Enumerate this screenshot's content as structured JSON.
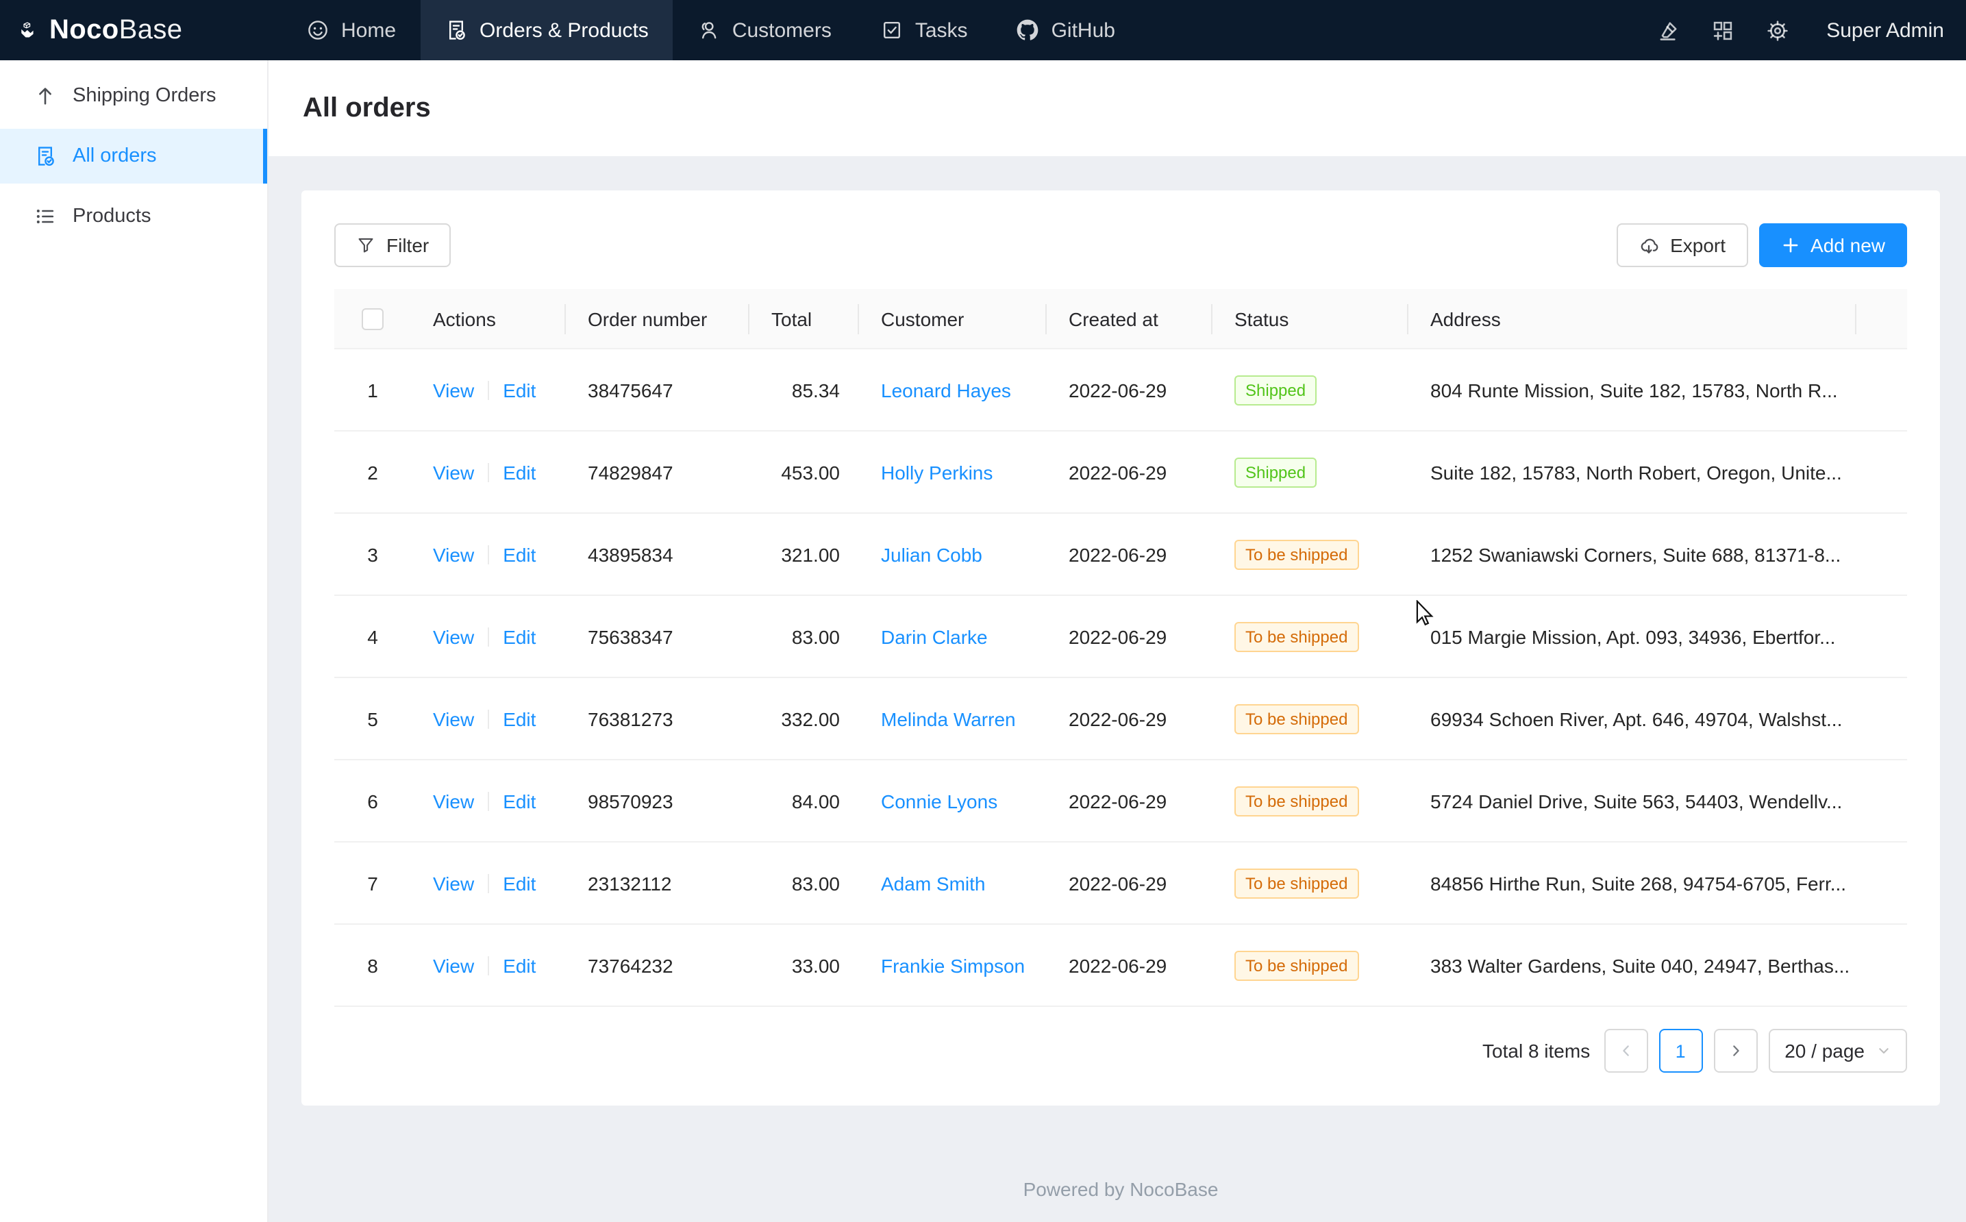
{
  "colors": {
    "primary": "#1890ff",
    "nav-bg": "#0b1a2c",
    "nav-active-bg": "#1d2d42",
    "tag-success-text": "#52c41a",
    "tag-success-bg": "#f6ffed",
    "tag-success-border": "#b7eb8f",
    "tag-warning-text": "#d46b08",
    "tag-warning-bg": "#fff7e6",
    "tag-warning-border": "#ffd591"
  },
  "nav": {
    "logo": {
      "brand_bold": "Noco",
      "brand_light": "Base",
      "icon": "nocobase-cube-icon"
    },
    "items": [
      {
        "id": "home",
        "icon": "smile-icon",
        "label": "Home",
        "active": false
      },
      {
        "id": "orders-products",
        "icon": "file-done-icon",
        "label": "Orders & Products",
        "active": true
      },
      {
        "id": "customers",
        "icon": "user-icon",
        "label": "Customers",
        "active": false
      },
      {
        "id": "tasks",
        "icon": "check-square-icon",
        "label": "Tasks",
        "active": false
      },
      {
        "id": "github",
        "icon": "github-icon",
        "label": "GitHub",
        "active": false
      }
    ],
    "right_icons": [
      {
        "id": "ui-editor",
        "icon": "highlighter-icon"
      },
      {
        "id": "plugins",
        "icon": "plugin-icon"
      },
      {
        "id": "settings",
        "icon": "gear-icon"
      }
    ],
    "user": "Super Admin"
  },
  "sidebar": {
    "items": [
      {
        "id": "shipping-orders",
        "icon": "arrow-up-icon",
        "label": "Shipping Orders",
        "active": false
      },
      {
        "id": "all-orders",
        "icon": "file-done-icon",
        "label": "All orders",
        "active": true
      },
      {
        "id": "products",
        "icon": "unordered-list-icon",
        "label": "Products",
        "active": false
      }
    ]
  },
  "page": {
    "title": "All orders"
  },
  "toolbar": {
    "filter_label": "Filter",
    "export_label": "Export",
    "add_new_label": "Add new"
  },
  "table": {
    "columns": [
      "",
      "Actions",
      "Order number",
      "Total",
      "Customer",
      "Created at",
      "Status",
      "Address"
    ],
    "action_labels": {
      "view": "View",
      "edit": "Edit"
    },
    "rows": [
      {
        "index": "1",
        "order_number": "38475647",
        "total": "85.34",
        "customer": "Leonard Hayes",
        "created_at": "2022-06-29",
        "status": "Shipped",
        "status_type": "success",
        "address": "804 Runte Mission, Suite 182, 15783, North R..."
      },
      {
        "index": "2",
        "order_number": "74829847",
        "total": "453.00",
        "customer": "Holly Perkins",
        "created_at": "2022-06-29",
        "status": "Shipped",
        "status_type": "success",
        "address": "Suite 182, 15783, North Robert, Oregon, Unite..."
      },
      {
        "index": "3",
        "order_number": "43895834",
        "total": "321.00",
        "customer": "Julian Cobb",
        "created_at": "2022-06-29",
        "status": "To be shipped",
        "status_type": "warning",
        "address": "1252 Swaniawski Corners, Suite 688, 81371-8..."
      },
      {
        "index": "4",
        "order_number": "75638347",
        "total": "83.00",
        "customer": "Darin Clarke",
        "created_at": "2022-06-29",
        "status": "To be shipped",
        "status_type": "warning",
        "address": "015 Margie Mission, Apt. 093, 34936, Ebertfor..."
      },
      {
        "index": "5",
        "order_number": "76381273",
        "total": "332.00",
        "customer": "Melinda Warren",
        "created_at": "2022-06-29",
        "status": "To be shipped",
        "status_type": "warning",
        "address": "69934 Schoen River, Apt. 646, 49704, Walshst..."
      },
      {
        "index": "6",
        "order_number": "98570923",
        "total": "84.00",
        "customer": "Connie Lyons",
        "created_at": "2022-06-29",
        "status": "To be shipped",
        "status_type": "warning",
        "address": "5724 Daniel Drive, Suite 563, 54403, Wendellv..."
      },
      {
        "index": "7",
        "order_number": "23132112",
        "total": "83.00",
        "customer": "Adam Smith",
        "created_at": "2022-06-29",
        "status": "To be shipped",
        "status_type": "warning",
        "address": "84856 Hirthe Run, Suite 268, 94754-6705, Ferr..."
      },
      {
        "index": "8",
        "order_number": "73764232",
        "total": "33.00",
        "customer": "Frankie Simpson",
        "created_at": "2022-06-29",
        "status": "To be shipped",
        "status_type": "warning",
        "address": "383 Walter Gardens, Suite 040, 24947, Berthas..."
      }
    ]
  },
  "pagination": {
    "total_label": "Total 8 items",
    "current_page": "1",
    "page_size_label": "20 / page"
  },
  "footer": {
    "text": "Powered by NocoBase"
  }
}
